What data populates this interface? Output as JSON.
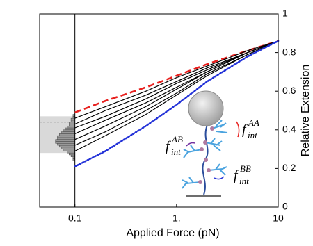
{
  "chart_data": {
    "type": "line",
    "x_label": "Applied Force (pN)",
    "y_label": "Relative Extension",
    "log_x": true,
    "xlim": [
      0.045,
      10
    ],
    "xticks": [
      0.1,
      {
        "value": 1,
        "label": "1."
      },
      10
    ],
    "ylim": [
      0,
      1
    ],
    "yticks": [
      0,
      0.2,
      0.4,
      0.6,
      0.8,
      1
    ],
    "x": [
      0.1,
      0.2,
      0.5,
      1,
      2,
      5,
      10
    ],
    "series": [
      {
        "color": "#e8211f",
        "style": "dashed",
        "values": [
          0.49,
          0.55,
          0.62,
          0.68,
          0.74,
          0.81,
          0.86
        ]
      },
      {
        "color": "#000000",
        "style": "solid",
        "values": [
          0.46,
          0.52,
          0.6,
          0.67,
          0.73,
          0.81,
          0.86
        ]
      },
      {
        "color": "#000000",
        "style": "solid",
        "values": [
          0.43,
          0.5,
          0.58,
          0.65,
          0.72,
          0.8,
          0.86
        ]
      },
      {
        "color": "#000000",
        "style": "solid",
        "values": [
          0.41,
          0.47,
          0.56,
          0.64,
          0.71,
          0.8,
          0.86
        ]
      },
      {
        "color": "#000000",
        "style": "solid",
        "values": [
          0.38,
          0.45,
          0.54,
          0.62,
          0.7,
          0.8,
          0.86
        ]
      },
      {
        "color": "#000000",
        "style": "solid",
        "values": [
          0.35,
          0.42,
          0.52,
          0.61,
          0.7,
          0.8,
          0.86
        ]
      },
      {
        "color": "#000000",
        "style": "solid",
        "values": [
          0.32,
          0.39,
          0.5,
          0.59,
          0.69,
          0.79,
          0.86
        ]
      },
      {
        "color": "#000000",
        "style": "solid",
        "values": [
          0.29,
          0.37,
          0.48,
          0.58,
          0.68,
          0.79,
          0.86
        ]
      },
      {
        "color": "#2231d8",
        "style": "dotted",
        "values": [
          0.21,
          0.29,
          0.42,
          0.53,
          0.65,
          0.78,
          0.86
        ]
      }
    ],
    "histogram": {
      "base": 0.1,
      "color": "#999999",
      "band": [
        0.28,
        0.47
      ],
      "band_color": "#d9d9d9",
      "dashed": [
        0.3,
        0.44
      ],
      "bins": [
        0.24,
        0.25,
        0.26,
        0.27,
        0.28,
        0.29,
        0.3,
        0.31,
        0.32,
        0.33,
        0.34,
        0.35,
        0.36,
        0.37,
        0.38,
        0.39,
        0.4,
        0.41,
        0.42,
        0.43,
        0.44,
        0.45,
        0.46,
        0.47,
        0.48
      ],
      "counts": [
        1,
        1,
        2,
        3,
        4,
        6,
        7,
        8,
        9,
        10,
        10,
        9,
        9,
        8,
        7,
        6,
        5,
        4,
        3,
        3,
        2,
        2,
        1,
        1
      ]
    },
    "annotations": [
      {
        "text": "f",
        "sub": "int",
        "sup": "AA",
        "color": "#e8211f"
      },
      {
        "text": "f",
        "sub": "int",
        "sup": "AB",
        "color": "#7030a0"
      },
      {
        "text": "f",
        "sub": "int",
        "sup": "BB",
        "color": "#2231d8"
      }
    ]
  }
}
